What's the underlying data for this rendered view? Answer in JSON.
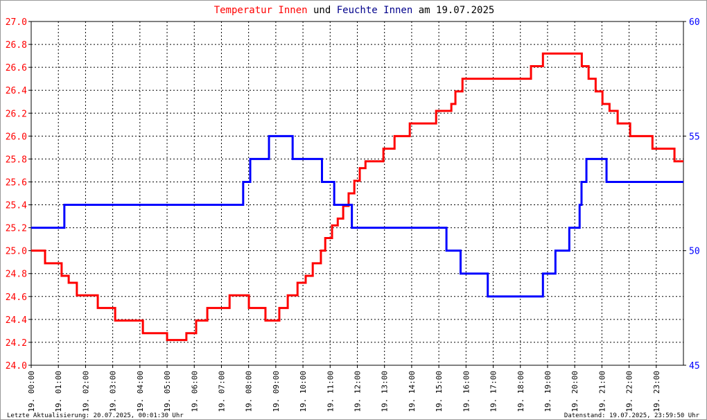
{
  "title": {
    "part1": "Temperatur Innen",
    "part2": "und",
    "part3": "Feuchte Innen",
    "part4": "am 19.07.2025"
  },
  "footer": {
    "left": "Letzte Aktualisierung: 20.07.2025, 00:01:30 Uhr",
    "right": "Datenstand: 19.07.2025, 23:59:50 Uhr"
  },
  "chart_data": {
    "type": "line",
    "grid": true,
    "x_ticks": [
      "19. 00:00",
      "19. 01:00",
      "19. 02:00",
      "19. 03:00",
      "19. 04:00",
      "19. 05:00",
      "19. 06:00",
      "19. 07:00",
      "19. 08:00",
      "19. 09:00",
      "19. 10:00",
      "19. 11:00",
      "19. 12:00",
      "19. 13:00",
      "19. 14:00",
      "19. 15:00",
      "19. 16:00",
      "19. 17:00",
      "19. 18:00",
      "19. 19:00",
      "19. 20:00",
      "19. 21:00",
      "19. 22:00",
      "19. 23:00"
    ],
    "xlim_hours": [
      0,
      24
    ],
    "y_left": {
      "ylim": [
        24.0,
        27.0
      ],
      "ticks": [
        "24.0",
        "24.2",
        "24.4",
        "24.6",
        "24.8",
        "25.0",
        "25.2",
        "25.4",
        "25.6",
        "25.8",
        "26.0",
        "26.2",
        "26.4",
        "26.6",
        "26.8",
        "27.0"
      ],
      "color": "#ff0000"
    },
    "y_right": {
      "ylim": [
        45,
        60
      ],
      "ticks": [
        "45",
        "50",
        "55",
        "60"
      ],
      "color": "#0000ff"
    },
    "series": [
      {
        "name": "Temperatur Innen",
        "axis": "left",
        "color": "#ff0000",
        "step": true,
        "points": [
          [
            0,
            25.0
          ],
          [
            0.51,
            24.89
          ],
          [
            1.12,
            24.78
          ],
          [
            1.38,
            24.72
          ],
          [
            1.68,
            24.61
          ],
          [
            2.45,
            24.5
          ],
          [
            3.09,
            24.39
          ],
          [
            4.11,
            24.28
          ],
          [
            5.0,
            24.22
          ],
          [
            5.71,
            24.28
          ],
          [
            6.07,
            24.39
          ],
          [
            6.48,
            24.5
          ],
          [
            7.3,
            24.61
          ],
          [
            8.01,
            24.5
          ],
          [
            8.62,
            24.39
          ],
          [
            9.13,
            24.5
          ],
          [
            9.44,
            24.61
          ],
          [
            9.8,
            24.72
          ],
          [
            10.1,
            24.78
          ],
          [
            10.36,
            24.89
          ],
          [
            10.66,
            25.0
          ],
          [
            10.82,
            25.11
          ],
          [
            11.07,
            25.22
          ],
          [
            11.28,
            25.28
          ],
          [
            11.48,
            25.39
          ],
          [
            11.68,
            25.5
          ],
          [
            11.89,
            25.61
          ],
          [
            12.09,
            25.72
          ],
          [
            12.3,
            25.78
          ],
          [
            12.96,
            25.89
          ],
          [
            13.37,
            26.0
          ],
          [
            13.93,
            26.11
          ],
          [
            14.9,
            26.22
          ],
          [
            15.46,
            26.28
          ],
          [
            15.61,
            26.39
          ],
          [
            15.87,
            26.5
          ],
          [
            18.39,
            26.61
          ],
          [
            18.83,
            26.72
          ],
          [
            20.26,
            26.61
          ],
          [
            20.51,
            26.5
          ],
          [
            20.77,
            26.39
          ],
          [
            21.02,
            26.28
          ],
          [
            21.28,
            26.22
          ],
          [
            21.58,
            26.11
          ],
          [
            22.04,
            26.0
          ],
          [
            22.86,
            25.89
          ],
          [
            23.67,
            25.78
          ],
          [
            24,
            25.78
          ]
        ]
      },
      {
        "name": "Feuchte Innen",
        "axis": "right",
        "color": "#0000ff",
        "step": true,
        "points": [
          [
            0,
            51
          ],
          [
            1.22,
            52
          ],
          [
            7.8,
            53
          ],
          [
            8.06,
            54
          ],
          [
            8.75,
            55
          ],
          [
            9.62,
            54
          ],
          [
            10.7,
            53
          ],
          [
            11.15,
            52
          ],
          [
            11.8,
            51
          ],
          [
            15.28,
            50
          ],
          [
            15.8,
            49
          ],
          [
            16.8,
            48
          ],
          [
            18.83,
            49
          ],
          [
            19.29,
            50
          ],
          [
            19.8,
            51
          ],
          [
            20.18,
            52
          ],
          [
            20.25,
            53
          ],
          [
            20.43,
            54
          ],
          [
            21.17,
            53
          ],
          [
            24,
            53
          ]
        ]
      }
    ]
  }
}
